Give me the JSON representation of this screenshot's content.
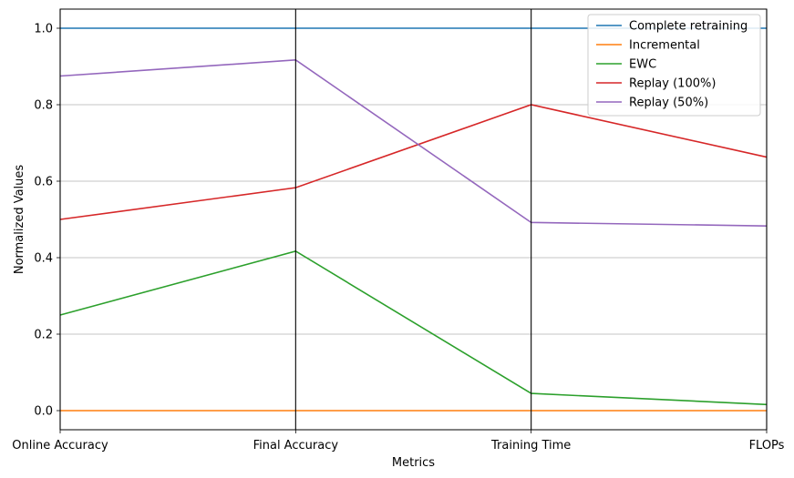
{
  "chart_data": {
    "type": "line",
    "title": "",
    "xlabel": "Metrics",
    "ylabel": "Normalized Values",
    "categories": [
      "Online Accuracy",
      "Final Accuracy",
      "Training Time",
      "FLOPs"
    ],
    "ylim": [
      -0.05,
      1.05
    ],
    "yticks": [
      "0.0",
      "0.2",
      "0.4",
      "0.6",
      "0.8",
      "1.0"
    ],
    "grid": "y",
    "legend_position": "top-right",
    "series": [
      {
        "name": "Complete retraining",
        "color": "#1f77b4",
        "values": [
          1.0,
          1.0,
          1.0,
          1.0
        ]
      },
      {
        "name": "Incremental",
        "color": "#ff7f0e",
        "values": [
          0.0,
          0.0,
          0.0,
          0.0
        ]
      },
      {
        "name": "EWC",
        "color": "#2ca02c",
        "values": [
          0.25,
          0.417,
          0.045,
          0.016
        ]
      },
      {
        "name": "Replay (100%)",
        "color": "#d62728",
        "values": [
          0.5,
          0.583,
          0.8,
          0.663
        ]
      },
      {
        "name": "Replay (50%)",
        "color": "#9467bd",
        "values": [
          0.875,
          0.917,
          0.492,
          0.483
        ]
      }
    ]
  }
}
